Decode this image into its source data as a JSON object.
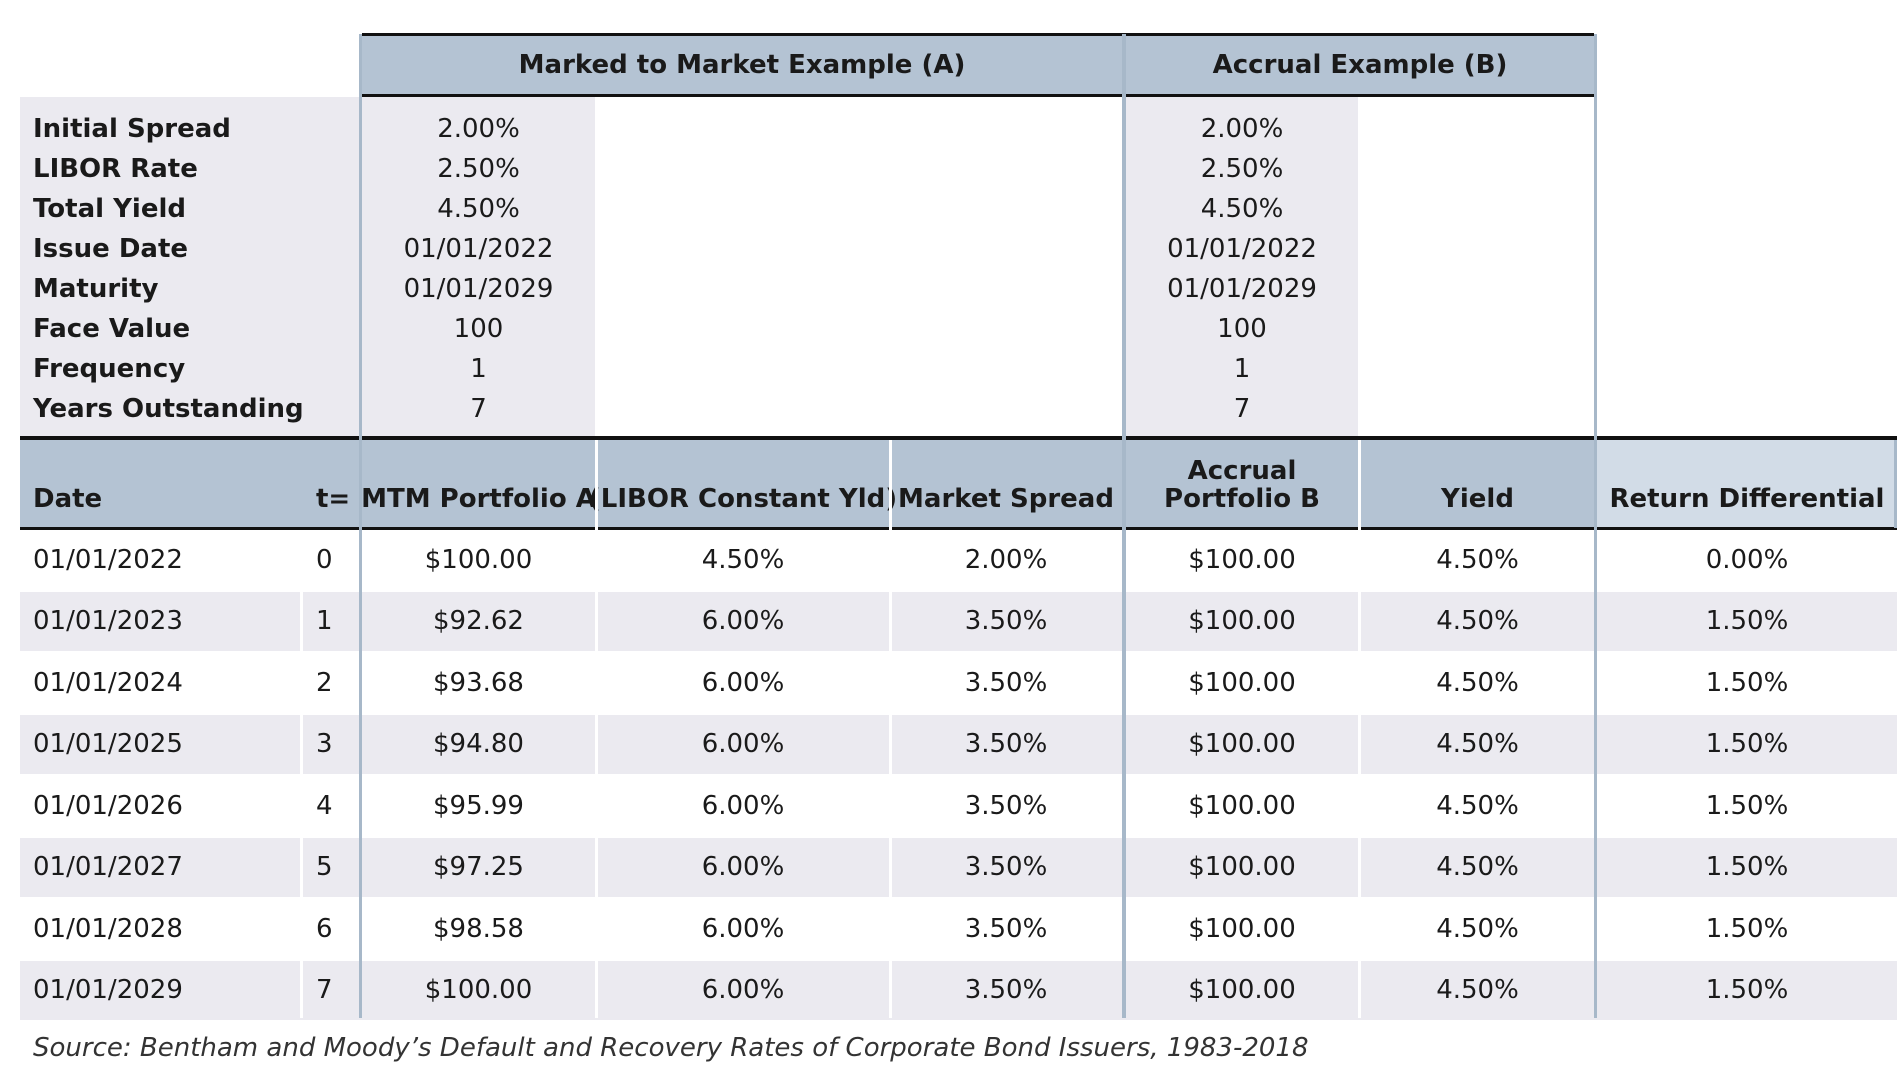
{
  "top_header": {
    "a": "Marked to Market Example (A)",
    "b": "Accrual Example (B)"
  },
  "parameters": [
    {
      "label": "Initial Spread",
      "a": "2.00%",
      "b": "2.00%"
    },
    {
      "label": "LIBOR Rate",
      "a": "2.50%",
      "b": "2.50%"
    },
    {
      "label": "Total Yield",
      "a": "4.50%",
      "b": "4.50%"
    },
    {
      "label": "Issue Date",
      "a": "01/01/2022",
      "b": "01/01/2022"
    },
    {
      "label": "Maturity",
      "a": "01/01/2029",
      "b": "01/01/2029"
    },
    {
      "label": "Face Value",
      "a": "100",
      "b": "100"
    },
    {
      "label": "Frequency",
      "a": "1",
      "b": "1"
    },
    {
      "label": "Years Outstanding",
      "a": "7",
      "b": "7"
    }
  ],
  "columns": {
    "date": "Date",
    "t": "t=",
    "mtm": "MTM Portfolio A",
    "libor": "(LIBOR Constant Yld)",
    "spread": "Market Spread",
    "accrual_1": "Accrual",
    "accrual_2": "Portfolio B",
    "yield": "Yield",
    "diff": "Return Differential"
  },
  "rows": [
    {
      "date": "01/01/2022",
      "t": "0",
      "mtm": "$100.00",
      "libor": "4.50%",
      "spread": "2.00%",
      "accrual": "$100.00",
      "yield": "4.50%",
      "diff": "0.00%"
    },
    {
      "date": "01/01/2023",
      "t": "1",
      "mtm": "$92.62",
      "libor": "6.00%",
      "spread": "3.50%",
      "accrual": "$100.00",
      "yield": "4.50%",
      "diff": "1.50%"
    },
    {
      "date": "01/01/2024",
      "t": "2",
      "mtm": "$93.68",
      "libor": "6.00%",
      "spread": "3.50%",
      "accrual": "$100.00",
      "yield": "4.50%",
      "diff": "1.50%"
    },
    {
      "date": "01/01/2025",
      "t": "3",
      "mtm": "$94.80",
      "libor": "6.00%",
      "spread": "3.50%",
      "accrual": "$100.00",
      "yield": "4.50%",
      "diff": "1.50%"
    },
    {
      "date": "01/01/2026",
      "t": "4",
      "mtm": "$95.99",
      "libor": "6.00%",
      "spread": "3.50%",
      "accrual": "$100.00",
      "yield": "4.50%",
      "diff": "1.50%"
    },
    {
      "date": "01/01/2027",
      "t": "5",
      "mtm": "$97.25",
      "libor": "6.00%",
      "spread": "3.50%",
      "accrual": "$100.00",
      "yield": "4.50%",
      "diff": "1.50%"
    },
    {
      "date": "01/01/2028",
      "t": "6",
      "mtm": "$98.58",
      "libor": "6.00%",
      "spread": "3.50%",
      "accrual": "$100.00",
      "yield": "4.50%",
      "diff": "1.50%"
    },
    {
      "date": "01/01/2029",
      "t": "7",
      "mtm": "$100.00",
      "libor": "6.00%",
      "spread": "3.50%",
      "accrual": "$100.00",
      "yield": "4.50%",
      "diff": "1.50%"
    }
  ],
  "source": "Source:  Bentham and Moody’s Default and Recovery Rates of Corporate Bond Issuers, 1983-2018"
}
